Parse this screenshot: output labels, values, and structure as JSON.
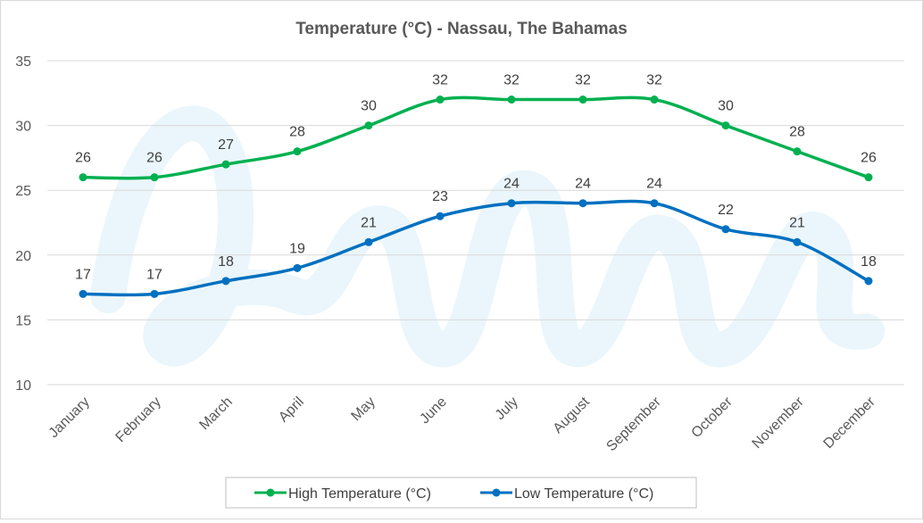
{
  "chart_data": {
    "type": "line",
    "title": "Temperature (°C) - Nassau, The Bahamas",
    "xlabel": "",
    "ylabel": "",
    "categories": [
      "January",
      "February",
      "March",
      "April",
      "May",
      "June",
      "July",
      "August",
      "September",
      "October",
      "November",
      "December"
    ],
    "ylim": [
      10,
      35
    ],
    "yticks": [
      10,
      15,
      20,
      25,
      30,
      35
    ],
    "grid": true,
    "legend_position": "bottom",
    "series": [
      {
        "name": "High Temperature (°C)",
        "color": "#00b050",
        "values": [
          26,
          26,
          27,
          28,
          30,
          32,
          32,
          32,
          32,
          30,
          28,
          26
        ]
      },
      {
        "name": "Low Temperature (°C)",
        "color": "#0070c0",
        "values": [
          17,
          17,
          18,
          19,
          21,
          23,
          24,
          24,
          24,
          22,
          21,
          18
        ]
      }
    ]
  }
}
